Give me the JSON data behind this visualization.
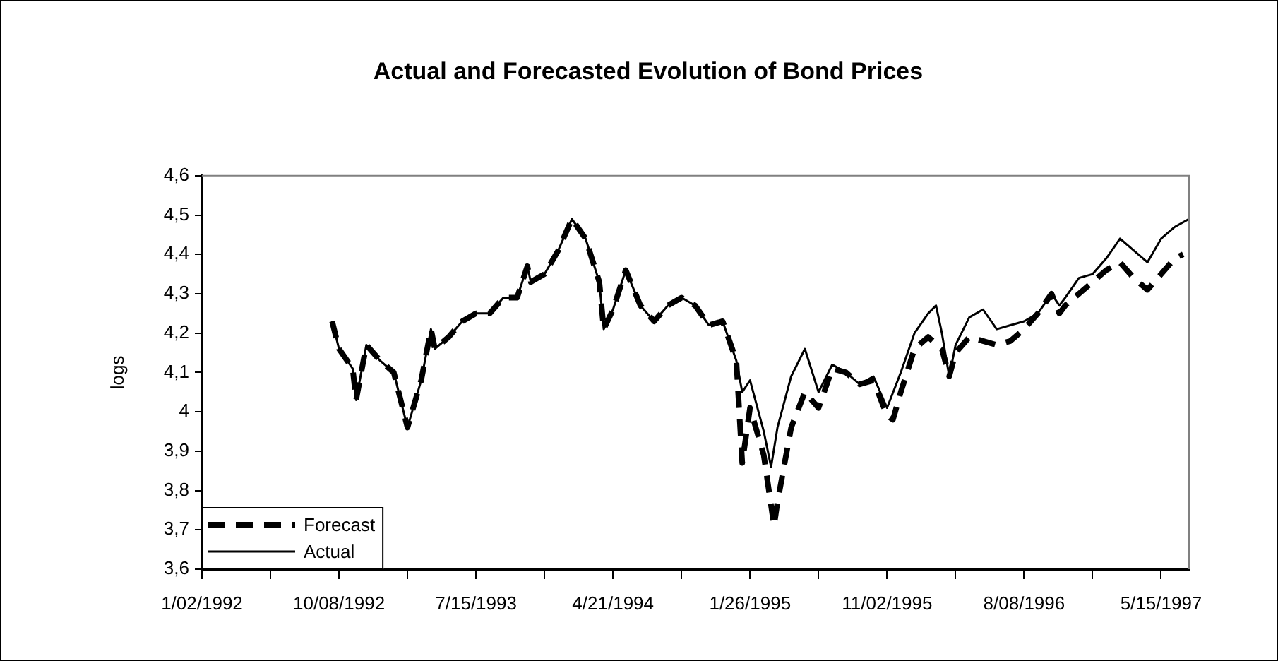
{
  "chart_data": {
    "type": "line",
    "title": "Actual and Forecasted Evolution of Bond Prices",
    "ylabel": "logs",
    "xlim": [
      "1992-01-02",
      "1997-07-11"
    ],
    "xticks": [
      {
        "value": "1992-01-02",
        "label": "1/02/1992"
      },
      {
        "value": "1992-05-21",
        "label": null
      },
      {
        "value": "1992-10-08",
        "label": "10/08/1992"
      },
      {
        "value": "1993-02-25",
        "label": null
      },
      {
        "value": "1993-07-15",
        "label": "7/15/1993"
      },
      {
        "value": "1993-12-02",
        "label": null
      },
      {
        "value": "1994-04-21",
        "label": "4/21/1994"
      },
      {
        "value": "1994-09-08",
        "label": null
      },
      {
        "value": "1995-01-26",
        "label": "1/26/1995"
      },
      {
        "value": "1995-06-15",
        "label": null
      },
      {
        "value": "1995-11-02",
        "label": "11/02/1995"
      },
      {
        "value": "1996-03-21",
        "label": null
      },
      {
        "value": "1996-08-08",
        "label": "8/08/1996"
      },
      {
        "value": "1996-12-26",
        "label": null
      },
      {
        "value": "1997-05-15",
        "label": "5/15/1997"
      }
    ],
    "ylim": [
      3.6,
      4.6
    ],
    "yticks": [
      {
        "value": 3.6,
        "label": "3,6"
      },
      {
        "value": 3.7,
        "label": "3,7"
      },
      {
        "value": 3.8,
        "label": "3,8"
      },
      {
        "value": 3.9,
        "label": "3,9"
      },
      {
        "value": 4,
        "label": "4"
      },
      {
        "value": 4.1,
        "label": "4,1"
      },
      {
        "value": 4.2,
        "label": "4,2"
      },
      {
        "value": 4.3,
        "label": "4,3"
      },
      {
        "value": 4.4,
        "label": "4,4"
      },
      {
        "value": 4.5,
        "label": "4,5"
      },
      {
        "value": 4.6,
        "label": "4,6"
      }
    ],
    "legend": "bottom left",
    "marker": "none",
    "series": [
      {
        "name": "Forecast",
        "color": "#000000",
        "line_style": "dashed",
        "x": [
          "1992-09-24",
          "1992-10-08",
          "1992-11-05",
          "1992-11-12",
          "1992-12-03",
          "1992-12-31",
          "1993-01-28",
          "1993-02-25",
          "1993-03-25",
          "1993-04-14",
          "1993-04-22",
          "1993-05-20",
          "1993-06-17",
          "1993-07-15",
          "1993-08-12",
          "1993-09-09",
          "1993-10-07",
          "1993-10-28",
          "1993-11-04",
          "1993-12-02",
          "1993-12-30",
          "1994-01-27",
          "1994-02-24",
          "1994-03-24",
          "1994-04-02",
          "1994-04-21",
          "1994-05-17",
          "1994-06-16",
          "1994-07-14",
          "1994-08-11",
          "1994-09-08",
          "1994-10-06",
          "1994-11-03",
          "1994-12-01",
          "1994-12-29",
          "1995-01-10",
          "1995-01-26",
          "1995-02-23",
          "1995-03-16",
          "1995-03-23",
          "1995-04-20",
          "1995-05-18",
          "1995-06-15",
          "1995-07-13",
          "1995-08-10",
          "1995-09-07",
          "1995-10-05",
          "1995-11-02",
          "1995-11-14",
          "1995-11-30",
          "1995-12-28",
          "1996-01-25",
          "1996-02-22",
          "1996-03-08",
          "1996-03-21",
          "1996-04-18",
          "1996-05-16",
          "1996-06-13",
          "1996-07-11",
          "1996-08-08",
          "1996-09-05",
          "1996-10-03",
          "1996-10-19",
          "1996-10-31",
          "1996-11-28",
          "1996-12-26",
          "1997-01-23",
          "1997-02-20",
          "1997-03-20",
          "1997-04-17",
          "1997-05-15",
          "1997-06-12",
          "1997-06-29"
        ],
        "values": [
          4.23,
          4.16,
          4.11,
          4.03,
          4.17,
          4.13,
          4.1,
          3.96,
          4.08,
          4.21,
          4.16,
          4.19,
          4.23,
          4.25,
          4.25,
          4.29,
          4.29,
          4.37,
          4.33,
          4.35,
          4.41,
          4.49,
          4.44,
          4.33,
          4.21,
          4.26,
          4.36,
          4.27,
          4.23,
          4.27,
          4.29,
          4.27,
          4.22,
          4.23,
          4.13,
          3.87,
          4.01,
          3.89,
          3.71,
          3.77,
          3.96,
          4.05,
          4.01,
          4.11,
          4.1,
          4.07,
          4.08,
          3.99,
          3.98,
          4.05,
          4.16,
          4.19,
          4.16,
          4.09,
          4.15,
          4.19,
          4.18,
          4.17,
          4.18,
          4.21,
          4.25,
          4.3,
          4.25,
          4.27,
          4.3,
          4.33,
          4.36,
          4.38,
          4.34,
          4.31,
          4.35,
          4.39,
          4.4
        ]
      },
      {
        "name": "Actual",
        "color": "#000000",
        "line_style": "solid",
        "x": [
          "1992-09-24",
          "1992-10-08",
          "1992-11-05",
          "1992-11-12",
          "1992-12-03",
          "1992-12-31",
          "1993-01-28",
          "1993-02-25",
          "1993-03-25",
          "1993-04-14",
          "1993-04-22",
          "1993-05-20",
          "1993-06-17",
          "1993-07-15",
          "1993-08-12",
          "1993-09-09",
          "1993-10-07",
          "1993-10-28",
          "1993-11-04",
          "1993-12-02",
          "1993-12-30",
          "1994-01-27",
          "1994-02-24",
          "1994-03-24",
          "1994-04-02",
          "1994-04-21",
          "1994-05-17",
          "1994-06-16",
          "1994-07-14",
          "1994-08-11",
          "1994-09-08",
          "1994-10-06",
          "1994-11-03",
          "1994-12-01",
          "1994-12-29",
          "1995-01-10",
          "1995-01-26",
          "1995-02-23",
          "1995-03-10",
          "1995-03-23",
          "1995-04-20",
          "1995-05-18",
          "1995-06-15",
          "1995-07-13",
          "1995-08-10",
          "1995-09-07",
          "1995-10-05",
          "1995-11-02",
          "1995-11-30",
          "1995-12-28",
          "1996-01-25",
          "1996-02-10",
          "1996-02-22",
          "1996-03-08",
          "1996-03-21",
          "1996-04-18",
          "1996-05-16",
          "1996-06-13",
          "1996-07-11",
          "1996-08-08",
          "1996-09-05",
          "1996-10-03",
          "1996-10-19",
          "1996-10-31",
          "1996-11-28",
          "1996-12-26",
          "1997-01-23",
          "1997-02-20",
          "1997-03-20",
          "1997-04-17",
          "1997-05-15",
          "1997-06-12",
          "1997-07-11"
        ],
        "values": [
          4.23,
          4.16,
          4.11,
          4.03,
          4.17,
          4.13,
          4.1,
          3.96,
          4.08,
          4.21,
          4.16,
          4.19,
          4.23,
          4.25,
          4.25,
          4.29,
          4.29,
          4.37,
          4.33,
          4.35,
          4.41,
          4.49,
          4.44,
          4.33,
          4.21,
          4.26,
          4.36,
          4.27,
          4.23,
          4.27,
          4.29,
          4.27,
          4.22,
          4.23,
          4.13,
          4.05,
          4.08,
          3.95,
          3.86,
          3.96,
          4.09,
          4.16,
          4.05,
          4.12,
          4.1,
          4.07,
          4.09,
          4.01,
          4.1,
          4.2,
          4.25,
          4.27,
          4.2,
          4.09,
          4.17,
          4.24,
          4.26,
          4.21,
          4.22,
          4.23,
          4.25,
          4.3,
          4.27,
          4.29,
          4.34,
          4.35,
          4.39,
          4.44,
          4.41,
          4.38,
          4.44,
          4.47,
          4.49
        ]
      }
    ]
  }
}
